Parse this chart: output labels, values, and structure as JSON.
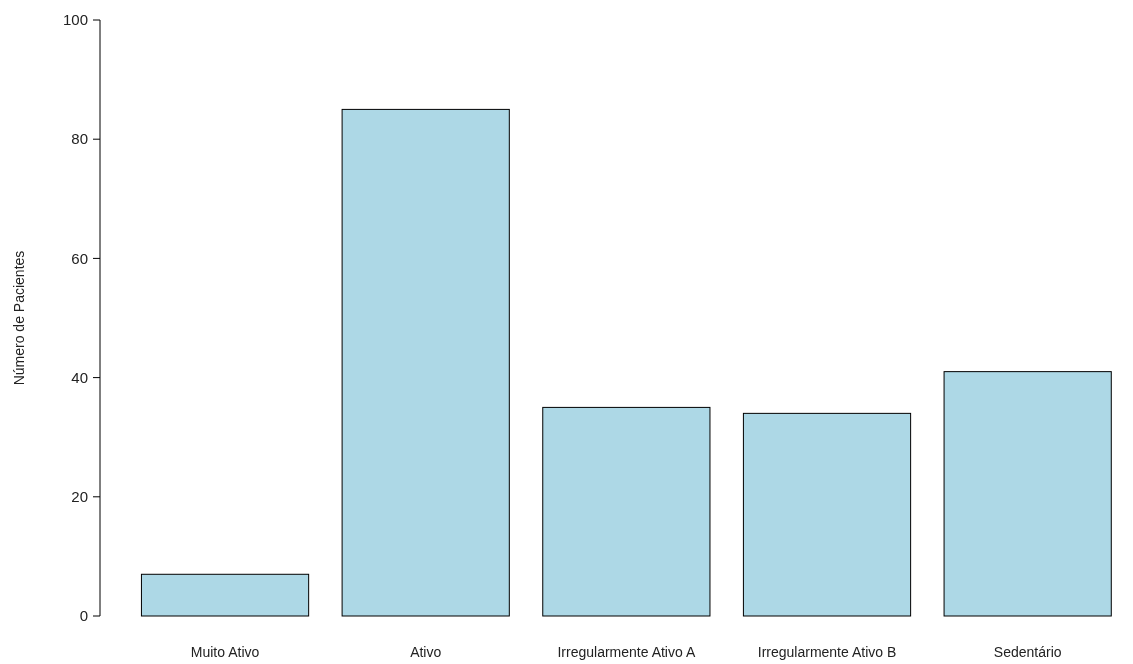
{
  "chart_data": {
    "type": "bar",
    "ylabel": "Número de Pacientes",
    "categories": [
      "Muito Ativo",
      "Ativo",
      "Irregularmente Ativo A",
      "Irregularmente Ativo B",
      "Sedentário"
    ],
    "values": [
      7,
      85,
      35,
      34,
      41
    ],
    "color": "#add8e6",
    "ylim": [
      0,
      100
    ],
    "yticks": [
      0,
      20,
      40,
      60,
      80,
      100
    ],
    "grid": false
  }
}
